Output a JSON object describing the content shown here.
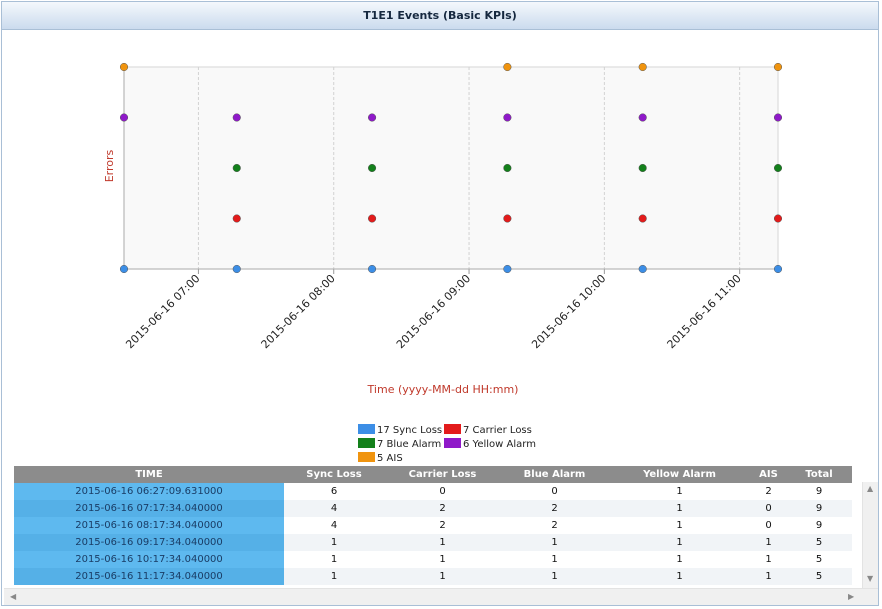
{
  "title": "T1E1 Events (Basic KPIs)",
  "chart_data": {
    "type": "scatter",
    "title": "",
    "ylabel": "Errors",
    "xlabel": "Time (yyyy-MM-dd HH:mm)",
    "x_ticks": [
      "2015-06-16 07:00",
      "2015-06-16 08:00",
      "2015-06-16 09:00",
      "2015-06-16 10:00",
      "2015-06-16 11:00"
    ],
    "x_range": [
      "2015-06-16 06:27",
      "2015-06-16 11:17"
    ],
    "grid": "vertical",
    "legend": "bottom-center",
    "series": [
      {
        "name": "17 Sync Loss",
        "color": "#3c8ee6",
        "times": [
          "06:27",
          "07:17",
          "08:17",
          "09:17",
          "10:17",
          "11:17"
        ]
      },
      {
        "name": "7 Carrier Loss",
        "color": "#e31b1b",
        "times": [
          "07:17",
          "08:17",
          "09:17",
          "10:17",
          "11:17"
        ]
      },
      {
        "name": "7 Blue Alarm",
        "color": "#13801b",
        "times": [
          "07:17",
          "08:17",
          "09:17",
          "10:17",
          "11:17"
        ]
      },
      {
        "name": "6 Yellow Alarm",
        "color": "#8f19c9",
        "times": [
          "06:27",
          "07:17",
          "08:17",
          "09:17",
          "10:17",
          "11:17"
        ]
      },
      {
        "name": "5 AIS",
        "color": "#f0940f",
        "times": [
          "06:27",
          "09:17",
          "10:17",
          "11:17"
        ]
      }
    ]
  },
  "table": {
    "headers": [
      "TIME",
      "Sync Loss",
      "Carrier Loss",
      "Blue Alarm",
      "Yellow Alarm",
      "AIS",
      "Total"
    ],
    "rows": [
      [
        "2015-06-16 06:27:09.631000",
        "6",
        "0",
        "0",
        "1",
        "2",
        "9"
      ],
      [
        "2015-06-16 07:17:34.040000",
        "4",
        "2",
        "2",
        "1",
        "0",
        "9"
      ],
      [
        "2015-06-16 08:17:34.040000",
        "4",
        "2",
        "2",
        "1",
        "0",
        "9"
      ],
      [
        "2015-06-16 09:17:34.040000",
        "1",
        "1",
        "1",
        "1",
        "1",
        "5"
      ],
      [
        "2015-06-16 10:17:34.040000",
        "1",
        "1",
        "1",
        "1",
        "1",
        "5"
      ],
      [
        "2015-06-16 11:17:34.040000",
        "1",
        "1",
        "1",
        "1",
        "1",
        "5"
      ]
    ]
  }
}
